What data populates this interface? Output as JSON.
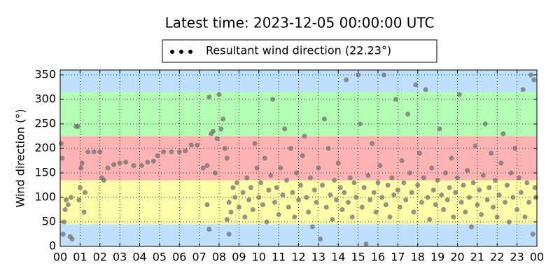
{
  "chart_data": {
    "type": "scatter",
    "title": "Latest time: 2023-12-05 00:00:00 UTC",
    "y_label": "Wind direction (°)",
    "xlim": [
      0,
      24
    ],
    "ylim": [
      0,
      360
    ],
    "xticks": [
      {
        "value": 0,
        "label": "00"
      },
      {
        "value": 1,
        "label": "01"
      },
      {
        "value": 2,
        "label": "02"
      },
      {
        "value": 3,
        "label": "03"
      },
      {
        "value": 4,
        "label": "04"
      },
      {
        "value": 5,
        "label": "05"
      },
      {
        "value": 6,
        "label": "06"
      },
      {
        "value": 7,
        "label": "07"
      },
      {
        "value": 8,
        "label": "08"
      },
      {
        "value": 9,
        "label": "09"
      },
      {
        "value": 10,
        "label": "10"
      },
      {
        "value": 11,
        "label": "11"
      },
      {
        "value": 12,
        "label": "12"
      },
      {
        "value": 13,
        "label": "13"
      },
      {
        "value": 14,
        "label": "14"
      },
      {
        "value": 15,
        "label": "15"
      },
      {
        "value": 16,
        "label": "16"
      },
      {
        "value": 17,
        "label": "17"
      },
      {
        "value": 18,
        "label": "18"
      },
      {
        "value": 19,
        "label": "19"
      },
      {
        "value": 20,
        "label": "20"
      },
      {
        "value": 21,
        "label": "21"
      },
      {
        "value": 22,
        "label": "22"
      },
      {
        "value": 23,
        "label": "23"
      },
      {
        "value": 24,
        "label": "00"
      }
    ],
    "yticks": [
      0,
      50,
      100,
      150,
      200,
      250,
      300,
      350
    ],
    "grid": true,
    "bands": [
      {
        "from": 0,
        "to": 45,
        "color": "#bfdfff"
      },
      {
        "from": 45,
        "to": 135,
        "color": "#ffffaa"
      },
      {
        "from": 135,
        "to": 225,
        "color": "#ffb3b3"
      },
      {
        "from": 225,
        "to": 315,
        "color": "#b3ffb3"
      },
      {
        "from": 315,
        "to": 360,
        "color": "#bfdfff"
      }
    ],
    "legend": "top",
    "series": [
      {
        "name": "Resultant wind direction (22.23°)",
        "color": "#707070",
        "x": [
          0.05,
          0.1,
          0.15,
          0.2,
          0.25,
          0.3,
          0.4,
          0.5,
          0.6,
          0.55,
          0.8,
          0.9,
          0.95,
          1.0,
          1.05,
          1.1,
          1.25,
          1.2,
          1.4,
          1.7,
          2.0,
          2.1,
          2.2,
          2.4,
          2.7,
          3.0,
          3.3,
          3.7,
          4.1,
          4.4,
          4.7,
          4.9,
          5.2,
          5.6,
          6.0,
          6.3,
          6.6,
          6.9,
          7.2,
          7.4,
          7.5,
          7.6,
          7.7,
          7.8,
          7.9,
          8.0,
          8.1,
          8.2,
          8.3,
          8.4,
          8.5,
          8.6,
          8.7,
          7.5,
          7.4,
          8.4,
          8.5,
          8.8,
          8.9,
          9.0,
          9.2,
          9.3,
          9.4,
          9.5,
          9.6,
          9.7,
          9.8,
          9.9,
          10.0,
          10.1,
          10.2,
          10.3,
          10.4,
          10.5,
          10.6,
          10.7,
          10.8,
          10.9,
          11.0,
          11.1,
          11.2,
          11.3,
          11.4,
          11.5,
          11.6,
          11.7,
          11.8,
          11.9,
          12.0,
          12.1,
          12.2,
          12.3,
          12.4,
          12.5,
          12.6,
          12.7,
          12.8,
          12.9,
          13.0,
          13.1,
          13.2,
          13.3,
          13.4,
          13.5,
          13.6,
          13.7,
          13.8,
          13.9,
          14.0,
          14.1,
          14.2,
          14.3,
          14.4,
          14.5,
          14.6,
          14.7,
          14.8,
          14.9,
          15.0,
          15.1,
          15.2,
          15.3,
          15.4,
          15.5,
          15.6,
          15.7,
          15.8,
          15.9,
          16.0,
          16.1,
          16.2,
          16.3,
          16.4,
          16.5,
          16.6,
          16.7,
          16.8,
          16.9,
          17.0,
          17.1,
          17.2,
          17.3,
          17.4,
          17.5,
          17.6,
          17.7,
          17.8,
          17.9,
          18.0,
          18.1,
          18.2,
          18.3,
          18.4,
          18.5,
          18.6,
          18.7,
          18.8,
          18.9,
          19.0,
          19.1,
          19.2,
          19.3,
          19.4,
          19.5,
          19.6,
          19.7,
          19.8,
          19.9,
          20.0,
          20.1,
          20.2,
          20.3,
          20.4,
          20.5,
          20.6,
          20.7,
          20.8,
          20.9,
          21.0,
          21.1,
          21.2,
          21.3,
          21.4,
          21.5,
          21.6,
          21.7,
          21.8,
          21.9,
          22.0,
          22.1,
          22.2,
          22.3,
          22.4,
          22.5,
          22.6,
          22.7,
          22.8,
          22.9,
          23.0,
          23.1,
          23.2,
          23.3,
          23.4,
          23.5,
          23.6,
          23.7,
          23.8,
          23.9,
          23.95,
          23.85
        ],
        "values": [
          210,
          180,
          25,
          50,
          75,
          95,
          85,
          20,
          15,
          100,
          245,
          245,
          95,
          120,
          160,
          170,
          110,
          70,
          193,
          193,
          193,
          140,
          135,
          160,
          167,
          170,
          172,
          165,
          165,
          172,
          174,
          185,
          193,
          193,
          193,
          195,
          207,
          207,
          160,
          165,
          305,
          230,
          235,
          150,
          220,
          310,
          240,
          260,
          200,
          180,
          90,
          70,
          120,
          35,
          85,
          55,
          25,
          100,
          130,
          80,
          110,
          60,
          140,
          95,
          120,
          75,
          210,
          160,
          100,
          130,
          85,
          180,
          50,
          115,
          145,
          300,
          90,
          120,
          65,
          160,
          105,
          240,
          135,
          80,
          200,
          110,
          60,
          150,
          95,
          125,
          185,
          225,
          100,
          70,
          140,
          40,
          115,
          90,
          160,
          15,
          125,
          260,
          80,
          200,
          105,
          55,
          135,
          95,
          170,
          120,
          75,
          110,
          340,
          90,
          140,
          60,
          130,
          100,
          350,
          250,
          80,
          120,
          5,
          145,
          95,
          210,
          110,
          70,
          130,
          165,
          100,
          350,
          85,
          125,
          60,
          140,
          105,
          300,
          115,
          80,
          175,
          130,
          95,
          270,
          150,
          110,
          70,
          330,
          125,
          190,
          90,
          140,
          320,
          100,
          55,
          160,
          115,
          85,
          135,
          240,
          105,
          75,
          150,
          95,
          120,
          180,
          60,
          110,
          140,
          310,
          90,
          125,
          70,
          155,
          100,
          40,
          130,
          205,
          85,
          115,
          65,
          145,
          250,
          95,
          120,
          190,
          80,
          135,
          60,
          105,
          170,
          230,
          90,
          125,
          50,
          150,
          100,
          200,
          75,
          140,
          110,
          320,
          60,
          130,
          90,
          350,
          25,
          120,
          100,
          340
        ]
      }
    ]
  }
}
